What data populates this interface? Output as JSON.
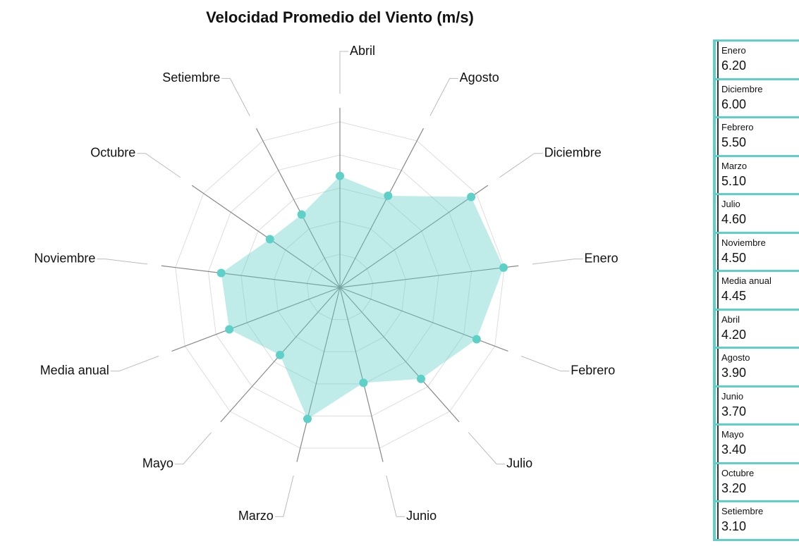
{
  "chart_data": {
    "type": "radar",
    "title": "Velocidad Promedio del Viento (m/s)",
    "categories": [
      "Abril",
      "Agosto",
      "Diciembre",
      "Enero",
      "Febrero",
      "Julio",
      "Junio",
      "Marzo",
      "Mayo",
      "Media anual",
      "Noviembre",
      "Octubre",
      "Setiembre"
    ],
    "values": [
      4.2,
      3.9,
      6.0,
      6.2,
      5.5,
      4.6,
      3.7,
      5.1,
      3.4,
      4.45,
      4.5,
      3.2,
      3.1
    ],
    "color": "#5fd0c8",
    "rlim": [
      0,
      6.5
    ]
  },
  "panel": {
    "items": [
      {
        "label": "Enero",
        "value": "6.20"
      },
      {
        "label": "Diciembre",
        "value": "6.00"
      },
      {
        "label": "Febrero",
        "value": "5.50"
      },
      {
        "label": "Marzo",
        "value": "5.10"
      },
      {
        "label": "Julio",
        "value": "4.60"
      },
      {
        "label": "Noviembre",
        "value": "4.50"
      },
      {
        "label": "Media anual",
        "value": "4.45"
      },
      {
        "label": "Abril",
        "value": "4.20"
      },
      {
        "label": "Agosto",
        "value": "3.90"
      },
      {
        "label": "Junio",
        "value": "3.70"
      },
      {
        "label": "Mayo",
        "value": "3.40"
      },
      {
        "label": "Octubre",
        "value": "3.20"
      },
      {
        "label": "Setiembre",
        "value": "3.10"
      }
    ]
  }
}
